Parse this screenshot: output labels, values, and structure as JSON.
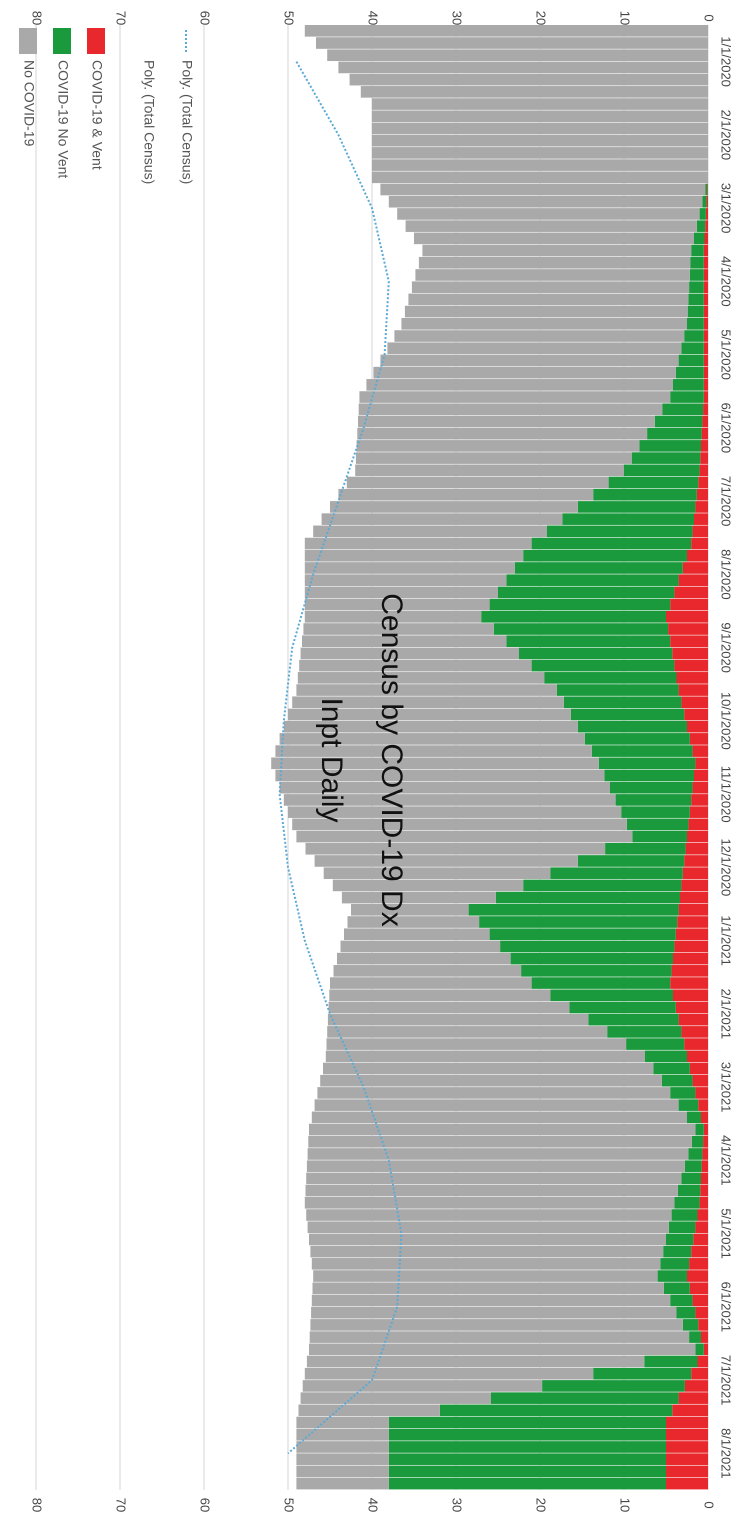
{
  "chart_data": {
    "type": "bar",
    "orientation": "rotated-90-clockwise",
    "stacked": true,
    "title": [
      "Inpt Daily",
      "Census by COVID-19 Dx"
    ],
    "legend": [
      {
        "label": "No COVID-19",
        "color": "#a9a9a9",
        "kind": "box"
      },
      {
        "label": "COVID-19 No Vent",
        "color": "#1a9a3c",
        "kind": "box"
      },
      {
        "label": "COVID-19 & Vent",
        "color": "#e8282c",
        "kind": "box"
      },
      {
        "label": "Poly. (Total Census)",
        "color": "#ffffff",
        "kind": "none"
      },
      {
        "label": "Poly. (Total Census)",
        "color": "#5aa9d6",
        "kind": "dotted"
      }
    ],
    "y_axis": {
      "min": 0,
      "max": 80,
      "ticks": [
        "0",
        "10",
        "20",
        "30",
        "40",
        "50",
        "60",
        "70",
        "80"
      ]
    },
    "categories": [
      "1/1/2020",
      "2/1/2020",
      "3/1/2020",
      "4/1/2020",
      "5/1/2020",
      "6/1/2020",
      "7/1/2020",
      "8/1/2020",
      "9/1/2020",
      "10/1/2020",
      "11/1/2020",
      "12/1/2020",
      "1/1/2021",
      "2/1/2021",
      "3/1/2021",
      "4/1/2021",
      "5/1/2021",
      "6/1/2021",
      "7/1/2021",
      "8/1/2021"
    ],
    "series": [
      {
        "name": "COVID-19 & Vent",
        "color": "#e8282c",
        "values": [
          0,
          0,
          0,
          0.5,
          0.5,
          0.5,
          1,
          2,
          5,
          3.5,
          1.5,
          2.5,
          3.5,
          4.5,
          2.5,
          0.5,
          1,
          2.5,
          0.5,
          5
        ]
      },
      {
        "name": "COVID-19 No Vent",
        "color": "#1a9a3c",
        "values": [
          0,
          0,
          0,
          1.5,
          2,
          4,
          9,
          19,
          22,
          14.5,
          11.5,
          6.5,
          25,
          16.5,
          5,
          1,
          3,
          3.5,
          1,
          33
        ]
      },
      {
        "name": "No COVID-19",
        "color": "#a9a9a9",
        "values": [
          48,
          40,
          40,
          32,
          34,
          37,
          32,
          27,
          21,
          31,
          39,
          40,
          14,
          24,
          38,
          46,
          44,
          41,
          46,
          11
        ]
      }
    ],
    "trend": {
      "name": "Poly. (Total Census)",
      "color": "#5aa9d6",
      "values": [
        49,
        44,
        40,
        38,
        38.5,
        41,
        44,
        47,
        49.5,
        50.5,
        51,
        50,
        48,
        45,
        41,
        38,
        36.5,
        37,
        40,
        50
      ]
    }
  }
}
